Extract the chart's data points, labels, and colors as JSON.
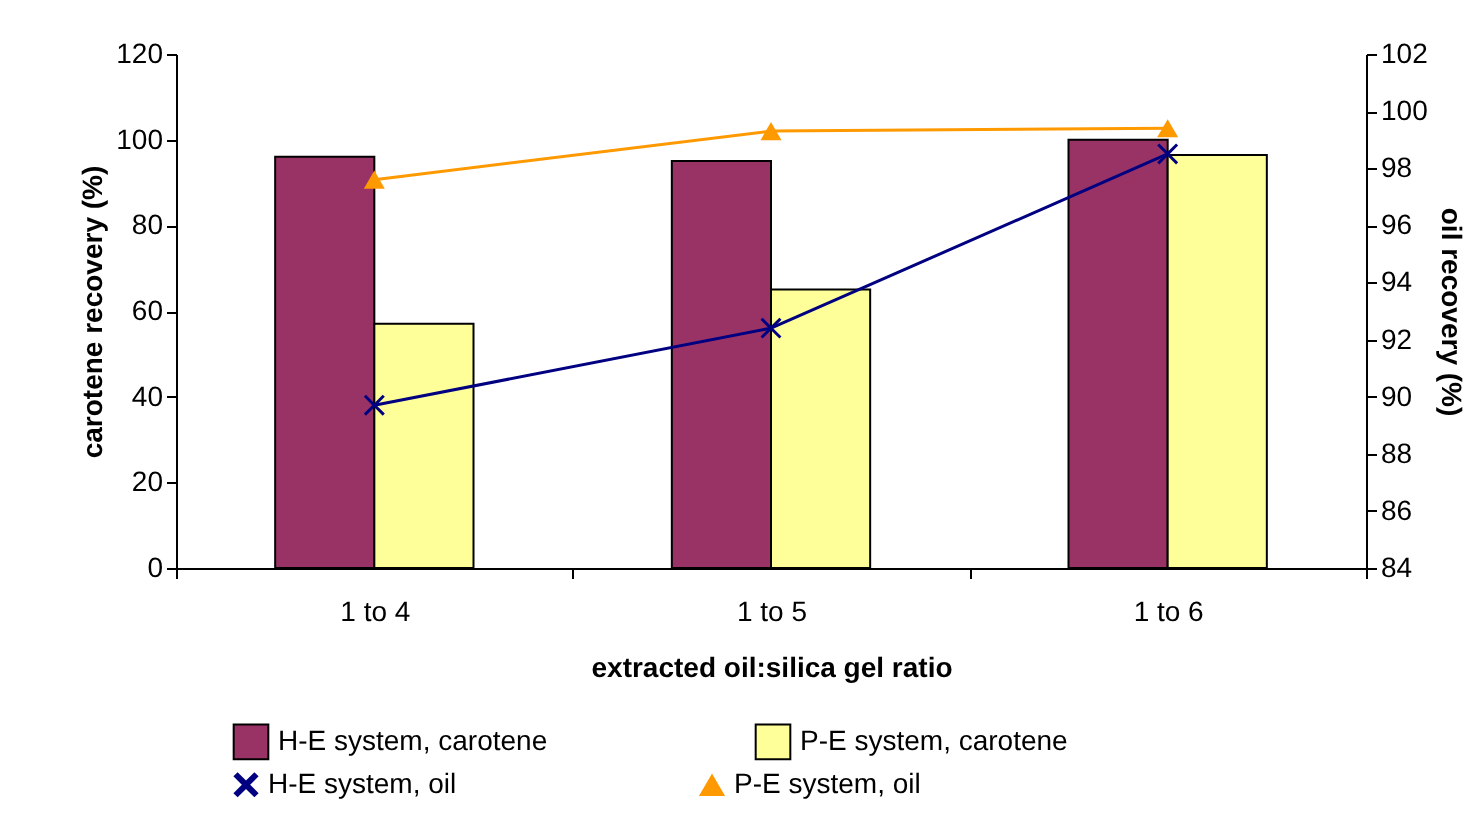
{
  "chart_data": {
    "type": "bar",
    "xlabel": "extracted oil:silica gel ratio",
    "ylabel": "carotene recovery (%)",
    "y2label": "oil recovery (%)",
    "categories": [
      "1 to 4",
      "1 to 5",
      "1 to 6"
    ],
    "series": [
      {
        "name": "H-E system, carotene",
        "color": "#993366",
        "values": [
          96,
          95,
          100
        ]
      },
      {
        "name": "P-E system, carotene",
        "color": "#ffff99",
        "values": [
          57,
          65,
          96.4
        ]
      },
      {
        "name": "H-E system, oil",
        "type": "line",
        "axis": "y2",
        "marker": "cross",
        "color": "#000080",
        "values": [
          89.7,
          92.4,
          98.5
        ]
      },
      {
        "name": "P-E system, oil",
        "type": "line",
        "axis": "y2",
        "marker": "triangle",
        "color": "#ff9900",
        "values": [
          97.6,
          99.3,
          99.4
        ]
      }
    ],
    "ylim": [
      0,
      120
    ],
    "yticks": [
      0,
      20,
      40,
      60,
      80,
      100,
      120
    ],
    "y2lim": [
      84,
      102
    ],
    "y2ticks": [
      84,
      86,
      88,
      90,
      92,
      94,
      96,
      98,
      100,
      102
    ],
    "grid": false,
    "legend": "bottom",
    "line_style": "solid"
  }
}
